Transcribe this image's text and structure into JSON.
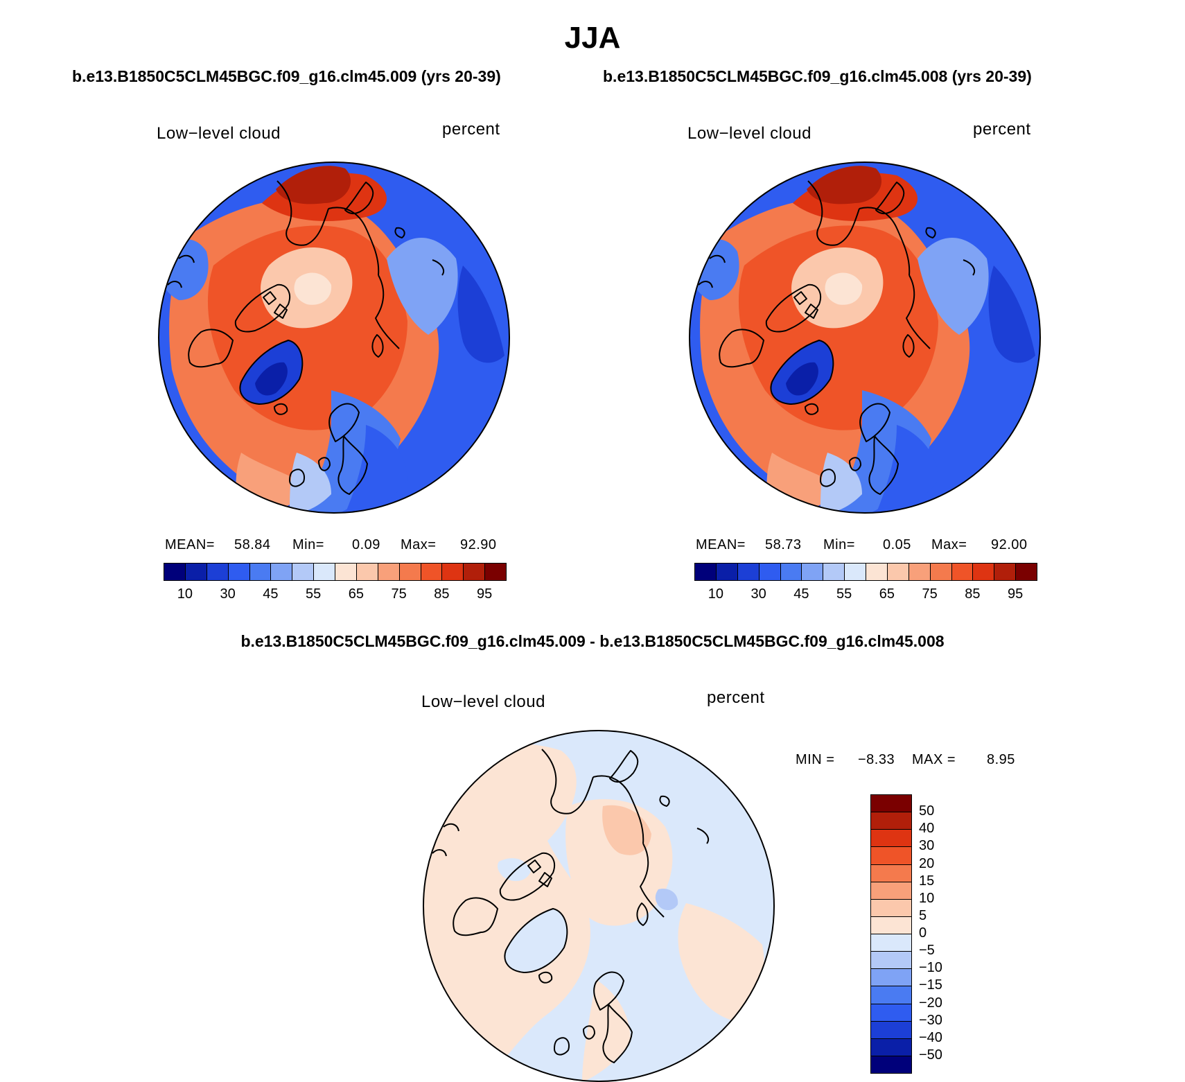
{
  "title": "JJA",
  "panels": [
    {
      "case_title": "b.e13.B1850C5CLM45BGC.f09_g16.clm45.009 (yrs 20-39)",
      "variable": "Low−level cloud",
      "units": "percent",
      "mean_label": "MEAN=",
      "mean": "58.84",
      "min_label": "Min=",
      "min": "0.09",
      "max_label": "Max=",
      "max": "92.90"
    },
    {
      "case_title": "b.e13.B1850C5CLM45BGC.f09_g16.clm45.008 (yrs 20-39)",
      "variable": "Low−level cloud",
      "units": "percent",
      "mean_label": "MEAN=",
      "mean": "58.73",
      "min_label": "Min=",
      "min": "0.05",
      "max_label": "Max=",
      "max": "92.00"
    }
  ],
  "diff": {
    "title": "b.e13.B1850C5CLM45BGC.f09_g16.clm45.009 - b.e13.B1850C5CLM45BGC.f09_g16.clm45.008",
    "variable": "Low−level cloud",
    "units": "percent",
    "min_label": "MIN =",
    "min": "−8.33",
    "max_label": "MAX =",
    "max": "8.95"
  },
  "chart_data": [
    {
      "type": "heatmap",
      "projection": "north-polar-stereographic",
      "title": "b.e13.B1850C5CLM45BGC.f09_g16.clm45.009 (yrs 20-39)",
      "field": "Low-level cloud",
      "units": "percent",
      "stats": {
        "mean": 58.84,
        "min": 0.09,
        "max": 92.9
      },
      "colorbar": {
        "levels": [
          10,
          30,
          45,
          55,
          65,
          75,
          85,
          95
        ],
        "tick_labels": [
          "10",
          "30",
          "45",
          "55",
          "65",
          "75",
          "85",
          "95"
        ],
        "colors": [
          "#00007a",
          "#0a1fa8",
          "#1c3fd6",
          "#2f5cf0",
          "#4a7bf2",
          "#7fa3f5",
          "#b3c9f7",
          "#dae8fb",
          "#fce4d4",
          "#fbc8ac",
          "#f8a07a",
          "#f47a4d",
          "#ef5428",
          "#de3412",
          "#b11f0a",
          "#7a0000"
        ]
      }
    },
    {
      "type": "heatmap",
      "projection": "north-polar-stereographic",
      "title": "b.e13.B1850C5CLM45BGC.f09_g16.clm45.008 (yrs 20-39)",
      "field": "Low-level cloud",
      "units": "percent",
      "stats": {
        "mean": 58.73,
        "min": 0.05,
        "max": 92.0
      },
      "colorbar": {
        "levels": [
          10,
          30,
          45,
          55,
          65,
          75,
          85,
          95
        ],
        "tick_labels": [
          "10",
          "30",
          "45",
          "55",
          "65",
          "75",
          "85",
          "95"
        ],
        "colors": [
          "#00007a",
          "#0a1fa8",
          "#1c3fd6",
          "#2f5cf0",
          "#4a7bf2",
          "#7fa3f5",
          "#b3c9f7",
          "#dae8fb",
          "#fce4d4",
          "#fbc8ac",
          "#f8a07a",
          "#f47a4d",
          "#ef5428",
          "#de3412",
          "#b11f0a",
          "#7a0000"
        ]
      }
    },
    {
      "type": "heatmap",
      "projection": "north-polar-stereographic",
      "title": "b.e13.B1850C5CLM45BGC.f09_g16.clm45.009 - b.e13.B1850C5CLM45BGC.f09_g16.clm45.008",
      "field": "Low-level cloud",
      "units": "percent",
      "stats": {
        "min": -8.33,
        "max": 8.95
      },
      "colorbar": {
        "orientation": "vertical",
        "tick_labels": [
          "50",
          "40",
          "30",
          "20",
          "15",
          "10",
          "5",
          "0",
          "−5",
          "−10",
          "−15",
          "−20",
          "−30",
          "−40",
          "−50"
        ],
        "colors": [
          "#7a0000",
          "#b11f0a",
          "#de3412",
          "#ef5428",
          "#f47a4d",
          "#f8a07a",
          "#fbc8ac",
          "#fce4d4",
          "#dae8fb",
          "#b3c9f7",
          "#7fa3f5",
          "#4a7bf2",
          "#2f5cf0",
          "#1c3fd6",
          "#0a1fa8",
          "#00007a"
        ]
      }
    }
  ]
}
